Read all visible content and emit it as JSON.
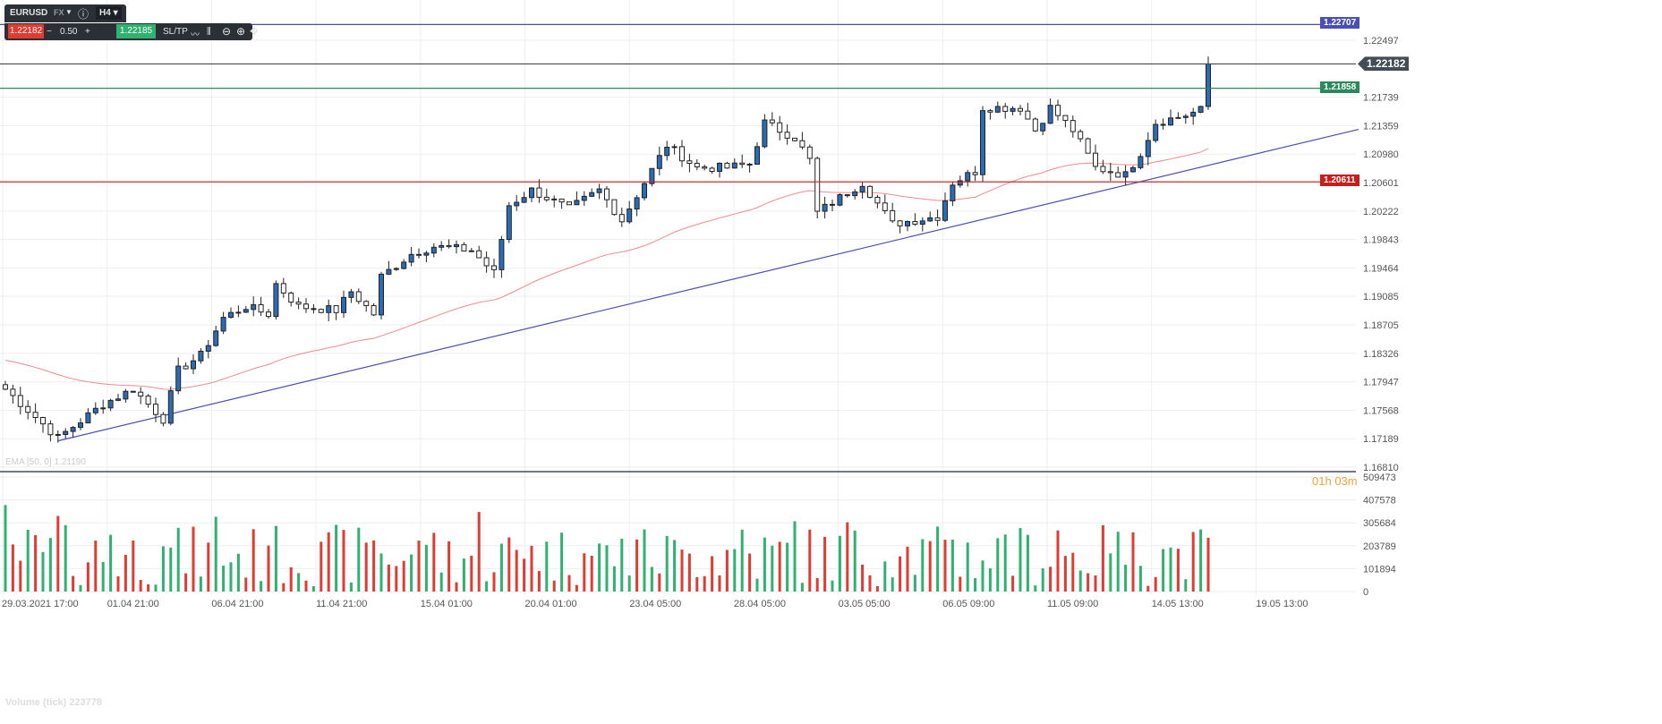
{
  "toolbar": {
    "symbol": "EURUSD",
    "market": "FX",
    "timeframe": "H4",
    "sell_price": "1.22182",
    "spread_minus": "−",
    "lot": "0.50",
    "spread_plus": "+",
    "buy_price": "1.22185",
    "sltp_label": "SL/TP"
  },
  "price_lines": [
    {
      "label": "1.22707",
      "value": 1.22707,
      "color": "#4a4fb5"
    },
    {
      "label": "1.22182",
      "value": 1.22182,
      "color": "#434d56"
    },
    {
      "label": "1.21858",
      "value": 1.21858,
      "color": "#2a8a5c"
    },
    {
      "label": "1.20611",
      "value": 1.20611,
      "color": "#c81d1d"
    }
  ],
  "indicators": {
    "ema_label": "EMA [50, 0] 1.21190",
    "volume_label": "Volume (tick) 223778"
  },
  "countdown": {
    "hours": "01h",
    "minutes": "03m"
  },
  "chart_data": {
    "type": "candlestick",
    "title": "EURUSD H4",
    "y_ticks": [
      "1.22497",
      "1.21739",
      "1.21359",
      "1.20980",
      "1.20601",
      "1.20222",
      "1.19843",
      "1.19464",
      "1.19085",
      "1.18705",
      "1.18326",
      "1.17947",
      "1.17568",
      "1.17189",
      "1.16810"
    ],
    "ylim": [
      1.1681,
      1.22497
    ],
    "x_ticks": [
      "29.03.2021 17:00",
      "01.04 21:00",
      "06.04 21:00",
      "11.04 21:00",
      "15.04 01:00",
      "20.04 01:00",
      "23.04 05:00",
      "28.04 05:00",
      "03.05 05:00",
      "06.05 09:00",
      "11.05 09:00",
      "14.05 13:00",
      "19.05 13:00"
    ],
    "candle_count": 161,
    "price_path": [
      [
        0,
        1.1785
      ],
      [
        7,
        1.172
      ],
      [
        13,
        1.1765
      ],
      [
        17,
        1.1785
      ],
      [
        21,
        1.1745
      ],
      [
        23,
        1.181
      ],
      [
        26,
        1.183
      ],
      [
        29,
        1.188
      ],
      [
        32,
        1.1895
      ],
      [
        35,
        1.1885
      ],
      [
        36,
        1.1925
      ],
      [
        39,
        1.1895
      ],
      [
        44,
        1.189
      ],
      [
        46,
        1.1915
      ],
      [
        49,
        1.1885
      ],
      [
        50,
        1.1935
      ],
      [
        54,
        1.1965
      ],
      [
        57,
        1.1975
      ],
      [
        62,
        1.197
      ],
      [
        65,
        1.194
      ],
      [
        67,
        1.203
      ],
      [
        70,
        1.205
      ],
      [
        75,
        1.2025
      ],
      [
        79,
        1.205
      ],
      [
        82,
        1.201
      ],
      [
        85,
        1.206
      ],
      [
        88,
        1.211
      ],
      [
        92,
        1.208
      ],
      [
        96,
        1.208
      ],
      [
        99,
        1.2085
      ],
      [
        101,
        1.214
      ],
      [
        105,
        1.212
      ],
      [
        107,
        1.209
      ],
      [
        108,
        1.202
      ],
      [
        111,
        1.204
      ],
      [
        114,
        1.206
      ],
      [
        118,
        1.2005
      ],
      [
        124,
        1.2015
      ],
      [
        126,
        1.206
      ],
      [
        129,
        1.2075
      ],
      [
        130,
        1.216
      ],
      [
        135,
        1.216
      ],
      [
        137,
        1.213
      ],
      [
        139,
        1.216
      ],
      [
        142,
        1.213
      ],
      [
        145,
        1.208
      ],
      [
        149,
        1.207
      ],
      [
        151,
        1.21
      ],
      [
        153,
        1.214
      ],
      [
        157,
        1.215
      ],
      [
        160,
        1.216
      ],
      [
        161,
        1.2218
      ]
    ],
    "volume_ticks": [
      "509473",
      "407578",
      "305684",
      "203789",
      "101894",
      "0"
    ],
    "volume_max": 509473,
    "trendline": {
      "start": [
        7,
        1.1716
      ],
      "end": [
        180,
        1.2131
      ]
    },
    "ema_period": 50
  }
}
